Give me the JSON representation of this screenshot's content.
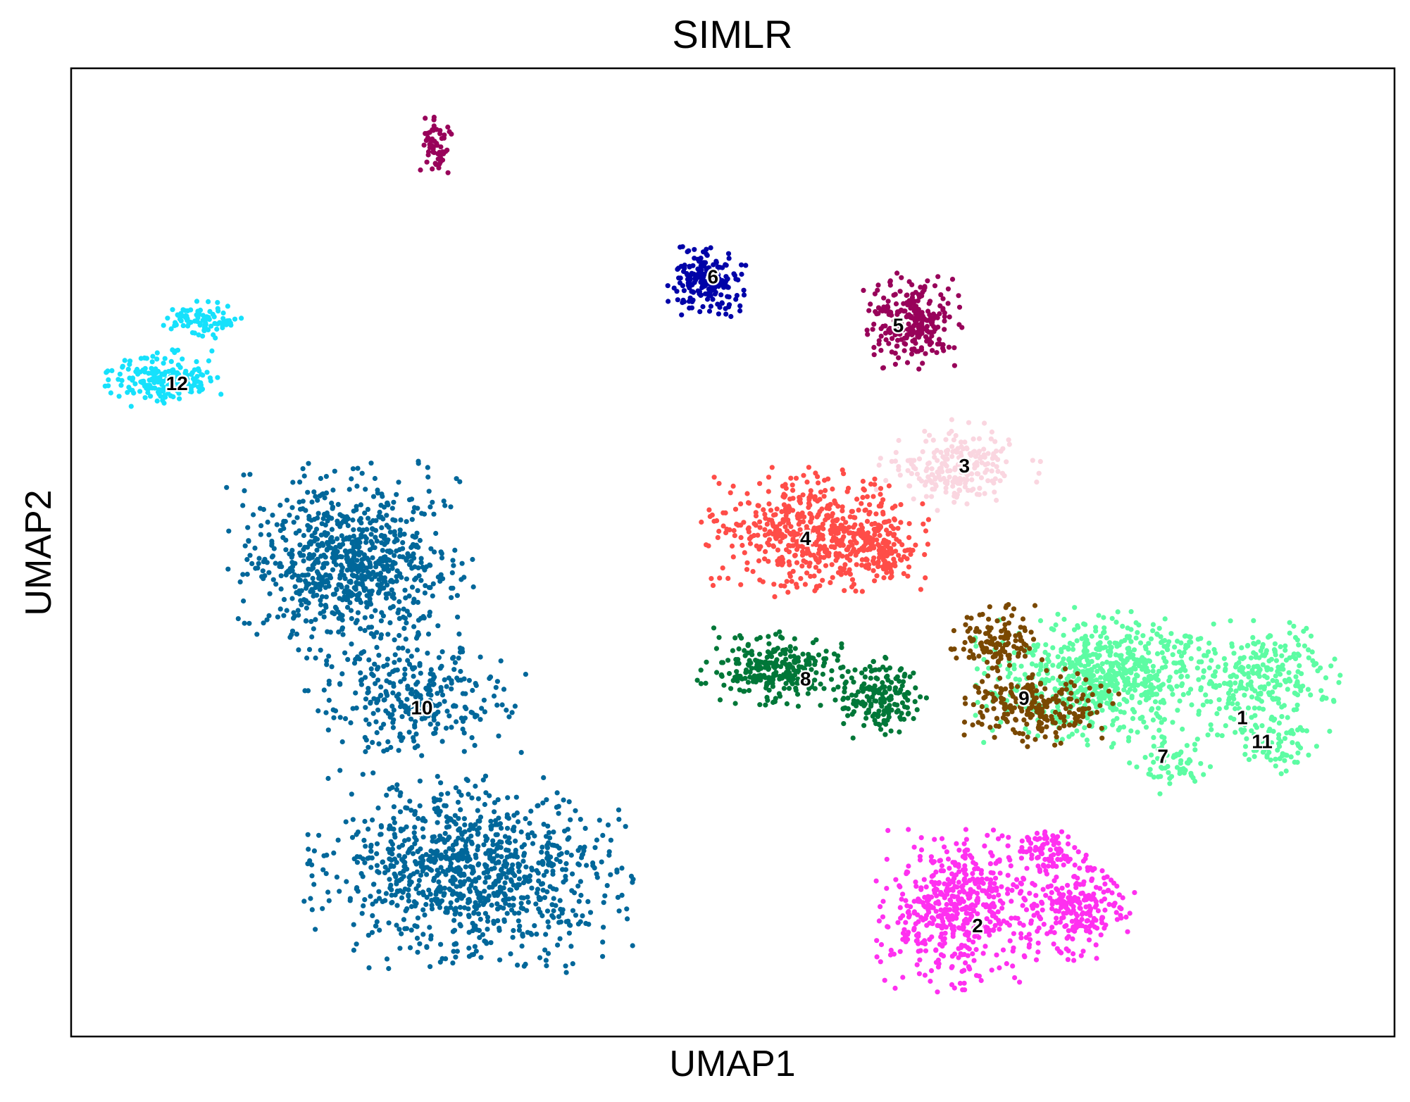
{
  "chart_data": {
    "type": "scatter",
    "title": "SIMLR",
    "xlabel": "UMAP1",
    "ylabel": "UMAP2",
    "xlim": [
      0,
      100
    ],
    "ylim": [
      0,
      100
    ],
    "grid": false,
    "legend": "none",
    "ticks": false,
    "clusters": [
      {
        "label": "1",
        "color": "#5dfca3",
        "blobs": [
          [
            78,
            37,
            9.5,
            7,
            700
          ],
          [
            90,
            37,
            6,
            6,
            260
          ]
        ],
        "label_pos": [
          88.5,
          33
        ]
      },
      {
        "label": "2",
        "color": "#ff30f0",
        "blobs": [
          [
            67,
            13,
            6,
            8,
            520
          ],
          [
            76,
            13,
            4.5,
            5,
            230
          ],
          [
            74,
            19,
            3,
            3,
            90
          ]
        ],
        "label_pos": [
          68.5,
          11.5
        ]
      },
      {
        "label": "3",
        "color": "#fad6e0",
        "blobs": [
          [
            67,
            59,
            6,
            4.5,
            230
          ]
        ],
        "label_pos": [
          67.5,
          59
        ]
      },
      {
        "label": "4",
        "color": "#ff4d48",
        "blobs": [
          [
            56,
            52,
            8.5,
            6.5,
            500
          ],
          [
            61,
            50,
            3.5,
            4,
            130
          ]
        ],
        "label_pos": [
          55.5,
          51.5
        ]
      },
      {
        "label": "5",
        "color": "#98025a",
        "blobs": [
          [
            63.5,
            74,
            3.8,
            5,
            260
          ]
        ],
        "label_pos": [
          62.5,
          73.5
        ]
      },
      {
        "label": "6",
        "color": "#0003a8",
        "blobs": [
          [
            48,
            78,
            3,
            3.5,
            200
          ]
        ],
        "label_pos": [
          48.5,
          78.5
        ]
      },
      {
        "label": "7",
        "color": "#5dfca3",
        "blobs": [
          [
            83,
            28,
            3,
            3,
            60
          ]
        ],
        "label_pos": [
          82.5,
          29
        ]
      },
      {
        "label": "8",
        "color": "#007738",
        "blobs": [
          [
            53,
            38,
            5.5,
            4,
            260
          ],
          [
            61,
            35,
            3.5,
            4,
            180
          ]
        ],
        "label_pos": [
          55.5,
          37
        ]
      },
      {
        "label": "9",
        "color": "#7a4800",
        "blobs": [
          [
            70,
            41,
            3.5,
            3.5,
            130
          ],
          [
            73,
            34,
            6,
            4,
            230
          ]
        ],
        "label_pos": [
          72,
          35
        ]
      },
      {
        "label": "10",
        "color": "#00679a",
        "blobs": [
          [
            21,
            49,
            9,
            10,
            820
          ],
          [
            26,
            35,
            8,
            6.5,
            300
          ],
          [
            30,
            17,
            12,
            10,
            980
          ]
        ],
        "label_pos": [
          26.5,
          34
        ]
      },
      {
        "label": "11",
        "color": "#5dfca3",
        "blobs": [
          [
            91,
            30,
            3,
            3,
            60
          ]
        ],
        "label_pos": [
          90,
          30.5
        ]
      },
      {
        "label": "12",
        "color": "#16e1fc",
        "blobs": [
          [
            7,
            68,
            4.5,
            2.8,
            190
          ],
          [
            10,
            74,
            3,
            2,
            90
          ]
        ],
        "label_pos": [
          8,
          67.5
        ]
      },
      {
        "label": "",
        "color": "#98025a",
        "blobs": [
          [
            27.5,
            92,
            1.2,
            3.5,
            60
          ]
        ],
        "label_pos": null
      }
    ]
  }
}
